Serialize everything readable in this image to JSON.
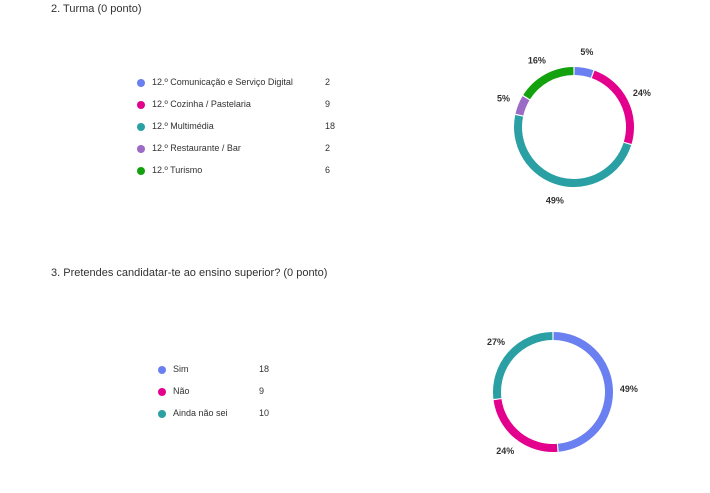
{
  "chart_data": [
    {
      "type": "pie",
      "title": "2. Turma (0 ponto)",
      "categories": [
        "12.º Comunicação e Serviço Digital",
        "12.º Cozinha / Pastelaria",
        "12.º Multimédia",
        "12.º Restaurante / Bar",
        "12.º Turismo"
      ],
      "values": [
        2,
        9,
        18,
        2,
        6
      ],
      "percent_labels": [
        "5%",
        "24%",
        "49%",
        "5%",
        "16%"
      ],
      "colors": [
        "#6a7ff0",
        "#e3008c",
        "#2aa0a4",
        "#9b6bc6",
        "#13a10e"
      ],
      "legend": "left"
    },
    {
      "type": "pie",
      "title": "3. Pretendes candidatar-te ao ensino superior? (0 ponto)",
      "categories": [
        "Sim",
        "Não",
        "Ainda não sei"
      ],
      "values": [
        18,
        9,
        10
      ],
      "percent_labels": [
        "49%",
        "24%",
        "27%"
      ],
      "colors": [
        "#6a7ff0",
        "#e3008c",
        "#2aa0a4"
      ],
      "legend": "left"
    }
  ]
}
